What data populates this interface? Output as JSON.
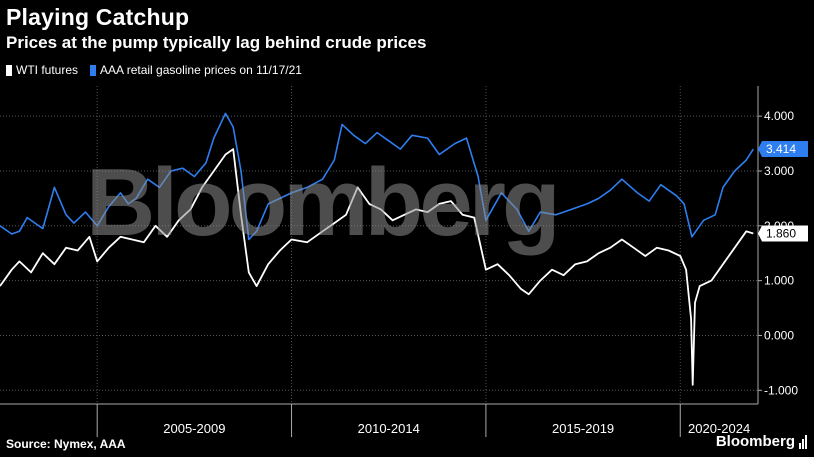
{
  "header": {
    "title": "Playing Catchup",
    "subtitle": "Prices at the pump typically lag behind crude prices"
  },
  "legend": [
    {
      "label": "WTI futures",
      "color": "#ffffff"
    },
    {
      "label": "AAA retail gasoline prices on 11/17/21",
      "color": "#2e7ef0"
    }
  ],
  "footer": {
    "source": "Source: Nymex, AAA",
    "brand": "Bloomberg"
  },
  "watermark": "Bloomberg",
  "chart_data": {
    "type": "line",
    "xlim": [
      2002.5,
      2022.0
    ],
    "ylim": [
      -1.25,
      4.55
    ],
    "ytick_values": [
      -1.0,
      0.0,
      1.0,
      2.0,
      3.0,
      4.0
    ],
    "ytick_labels": [
      "-1.000",
      "0.000",
      "1.000",
      "2.000",
      "3.000",
      "4.000"
    ],
    "x_periods": [
      {
        "label": "2005-2009",
        "start": 2005.0,
        "end": 2010.0
      },
      {
        "label": "2010-2014",
        "start": 2010.0,
        "end": 2015.0
      },
      {
        "label": "2015-2019",
        "start": 2015.0,
        "end": 2020.0
      },
      {
        "label": "2020-2024",
        "start": 2020.0,
        "end": 2025.0
      }
    ],
    "grid": true,
    "legend_position": "top-left",
    "series": [
      {
        "name": "AAA retail gasoline prices on 11/17/21",
        "color": "#2e7ef0",
        "last_value_label": "3.414",
        "x": [
          2002.5,
          2002.8,
          2003.0,
          2003.2,
          2003.4,
          2003.6,
          2003.9,
          2004.2,
          2004.4,
          2004.7,
          2005.0,
          2005.3,
          2005.6,
          2005.8,
          2006.0,
          2006.3,
          2006.6,
          2006.9,
          2007.2,
          2007.5,
          2007.8,
          2008.0,
          2008.3,
          2008.5,
          2008.7,
          2008.9,
          2009.1,
          2009.4,
          2009.7,
          2010.0,
          2010.4,
          2010.8,
          2011.1,
          2011.3,
          2011.6,
          2011.9,
          2012.2,
          2012.5,
          2012.8,
          2013.1,
          2013.5,
          2013.8,
          2014.2,
          2014.5,
          2014.8,
          2015.0,
          2015.4,
          2015.8,
          2016.1,
          2016.4,
          2016.8,
          2017.2,
          2017.6,
          2017.9,
          2018.2,
          2018.5,
          2018.9,
          2019.2,
          2019.5,
          2019.9,
          2020.1,
          2020.3,
          2020.6,
          2020.9,
          2021.1,
          2021.4,
          2021.7,
          2021.88
        ],
        "y": [
          2.0,
          1.85,
          1.9,
          2.15,
          2.05,
          1.95,
          2.7,
          2.2,
          2.05,
          2.25,
          2.0,
          2.35,
          2.6,
          2.4,
          2.5,
          2.85,
          2.7,
          3.0,
          3.05,
          2.9,
          3.15,
          3.6,
          4.05,
          3.8,
          3.0,
          1.75,
          1.9,
          2.4,
          2.5,
          2.6,
          2.7,
          2.85,
          3.2,
          3.85,
          3.65,
          3.5,
          3.7,
          3.55,
          3.4,
          3.65,
          3.6,
          3.3,
          3.5,
          3.6,
          2.9,
          2.1,
          2.6,
          2.3,
          1.9,
          2.25,
          2.2,
          2.3,
          2.4,
          2.5,
          2.65,
          2.85,
          2.6,
          2.45,
          2.75,
          2.55,
          2.4,
          1.8,
          2.1,
          2.2,
          2.7,
          3.0,
          3.2,
          3.4
        ]
      },
      {
        "name": "WTI futures",
        "color": "#ffffff",
        "last_value_label": "1.860",
        "x": [
          2002.5,
          2002.8,
          2003.0,
          2003.3,
          2003.6,
          2003.9,
          2004.2,
          2004.5,
          2004.8,
          2005.0,
          2005.3,
          2005.6,
          2005.9,
          2006.2,
          2006.5,
          2006.8,
          2007.1,
          2007.4,
          2007.7,
          2008.0,
          2008.3,
          2008.5,
          2008.7,
          2008.9,
          2009.1,
          2009.4,
          2009.7,
          2010.0,
          2010.4,
          2010.8,
          2011.1,
          2011.4,
          2011.7,
          2012.0,
          2012.3,
          2012.6,
          2012.9,
          2013.2,
          2013.5,
          2013.8,
          2014.1,
          2014.4,
          2014.7,
          2015.0,
          2015.3,
          2015.6,
          2015.9,
          2016.1,
          2016.4,
          2016.7,
          2017.0,
          2017.3,
          2017.6,
          2017.9,
          2018.2,
          2018.5,
          2018.8,
          2019.1,
          2019.4,
          2019.7,
          2020.0,
          2020.15,
          2020.28,
          2020.32,
          2020.38,
          2020.5,
          2020.8,
          2021.1,
          2021.4,
          2021.7,
          2021.88
        ],
        "y": [
          0.9,
          1.2,
          1.35,
          1.15,
          1.5,
          1.3,
          1.6,
          1.55,
          1.8,
          1.35,
          1.6,
          1.8,
          1.75,
          1.7,
          2.0,
          1.8,
          2.1,
          2.3,
          2.7,
          3.0,
          3.3,
          3.4,
          2.2,
          1.15,
          0.9,
          1.3,
          1.55,
          1.75,
          1.7,
          1.9,
          2.05,
          2.2,
          2.7,
          2.4,
          2.3,
          2.1,
          2.2,
          2.3,
          2.25,
          2.4,
          2.45,
          2.2,
          2.15,
          1.2,
          1.3,
          1.1,
          0.85,
          0.75,
          1.0,
          1.2,
          1.1,
          1.3,
          1.35,
          1.5,
          1.6,
          1.75,
          1.6,
          1.45,
          1.6,
          1.55,
          1.45,
          1.2,
          0.3,
          -0.9,
          0.6,
          0.9,
          1.0,
          1.3,
          1.6,
          1.9,
          1.86
        ]
      }
    ]
  }
}
